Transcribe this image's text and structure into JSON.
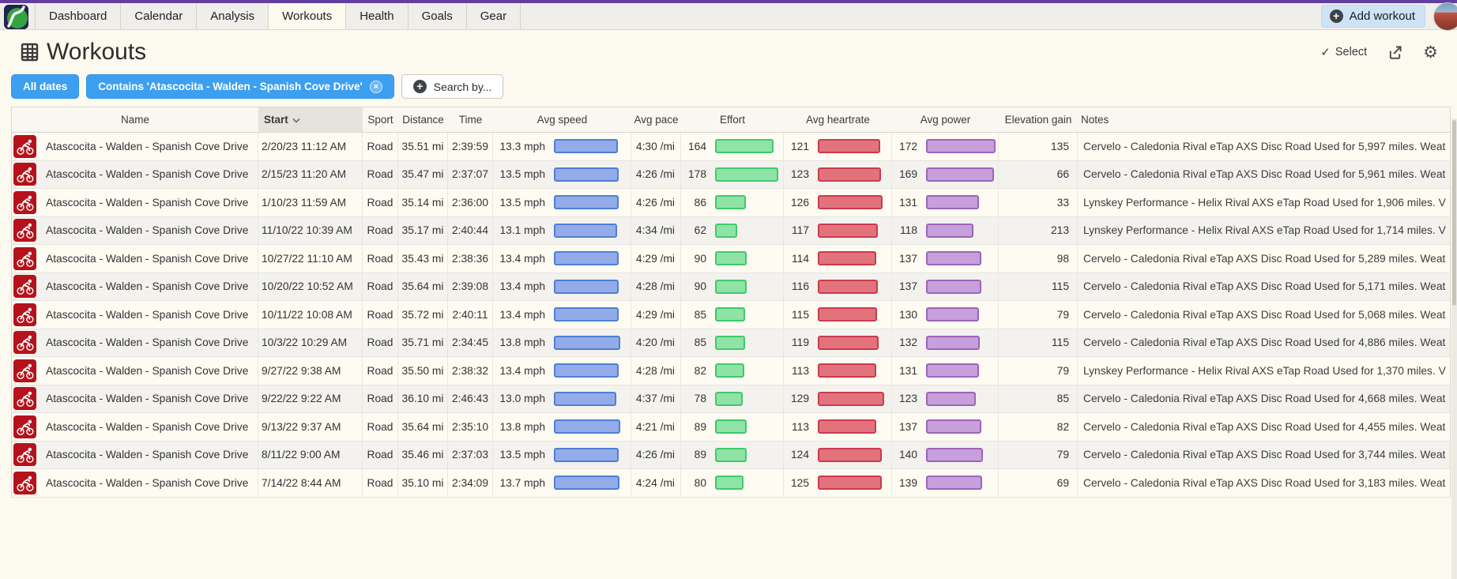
{
  "nav": {
    "tabs": [
      {
        "label": "Dashboard"
      },
      {
        "label": "Calendar"
      },
      {
        "label": "Analysis"
      },
      {
        "label": "Workouts"
      },
      {
        "label": "Health"
      },
      {
        "label": "Goals"
      },
      {
        "label": "Gear"
      }
    ],
    "active_tab": "Workouts",
    "add_workout": "Add workout"
  },
  "page": {
    "title": "Workouts"
  },
  "toolbar": {
    "select": "Select"
  },
  "filters": [
    {
      "label": "All dates",
      "style": "blue",
      "closable": false
    },
    {
      "label": "Contains 'Atascocita - Walden - Spanish Cove Drive'",
      "style": "blue",
      "closable": true
    },
    {
      "label": "Search by...",
      "style": "light",
      "plus": true
    }
  ],
  "table": {
    "headers": [
      "Name",
      "Start",
      "Sport",
      "Distance",
      "Time",
      "Avg speed",
      "Avg pace",
      "Effort",
      "Avg heartrate",
      "Avg power",
      "Elevation gain",
      "Notes"
    ],
    "sorted_column": "Start",
    "sort_direction": "desc",
    "rows": [
      {
        "name": "Atascocita - Walden - Spanish Cove Drive",
        "start": "2/20/23 11:12 AM",
        "sport": "Road",
        "distance": "35.51 mi",
        "time": "2:39:59",
        "speed": "13.3 mph",
        "pace": "4:30 /mi",
        "effort": 164,
        "hr": 121,
        "power": 172,
        "elev": "135",
        "notes": "Cervelo - Caledonia Rival eTap AXS Disc Road Used for 5,997 miles. Weat"
      },
      {
        "name": "Atascocita - Walden - Spanish Cove Drive",
        "start": "2/15/23 11:20 AM",
        "sport": "Road",
        "distance": "35.47 mi",
        "time": "2:37:07",
        "speed": "13.5 mph",
        "pace": "4:26 /mi",
        "effort": 178,
        "hr": 123,
        "power": 169,
        "elev": "66",
        "notes": "Cervelo - Caledonia Rival eTap AXS Disc Road Used for 5,961 miles. Weat"
      },
      {
        "name": "Atascocita - Walden - Spanish Cove Drive",
        "start": "1/10/23 11:59 AM",
        "sport": "Road",
        "distance": "35.14 mi",
        "time": "2:36:00",
        "speed": "13.5 mph",
        "pace": "4:26 /mi",
        "effort": 86,
        "hr": 126,
        "power": 131,
        "elev": "33",
        "notes": "Lynskey Performance - Helix Rival AXS eTap Road Used for 1,906 miles. V"
      },
      {
        "name": "Atascocita - Walden - Spanish Cove Drive",
        "start": "11/10/22 10:39 AM",
        "sport": "Road",
        "distance": "35.17 mi",
        "time": "2:40:44",
        "speed": "13.1 mph",
        "pace": "4:34 /mi",
        "effort": 62,
        "hr": 117,
        "power": 118,
        "elev": "213",
        "notes": "Lynskey Performance - Helix Rival AXS eTap Road Used for 1,714 miles. V"
      },
      {
        "name": "Atascocita - Walden - Spanish Cove Drive",
        "start": "10/27/22 11:10 AM",
        "sport": "Road",
        "distance": "35.43 mi",
        "time": "2:38:36",
        "speed": "13.4 mph",
        "pace": "4:29 /mi",
        "effort": 90,
        "hr": 114,
        "power": 137,
        "elev": "98",
        "notes": "Cervelo - Caledonia Rival eTap AXS Disc Road Used for 5,289 miles. Weat"
      },
      {
        "name": "Atascocita - Walden - Spanish Cove Drive",
        "start": "10/20/22 10:52 AM",
        "sport": "Road",
        "distance": "35.64 mi",
        "time": "2:39:08",
        "speed": "13.4 mph",
        "pace": "4:28 /mi",
        "effort": 90,
        "hr": 116,
        "power": 137,
        "elev": "115",
        "notes": "Cervelo - Caledonia Rival eTap AXS Disc Road Used for 5,171 miles. Weat"
      },
      {
        "name": "Atascocita - Walden - Spanish Cove Drive",
        "start": "10/11/22 10:08 AM",
        "sport": "Road",
        "distance": "35.72 mi",
        "time": "2:40:11",
        "speed": "13.4 mph",
        "pace": "4:29 /mi",
        "effort": 85,
        "hr": 115,
        "power": 130,
        "elev": "79",
        "notes": "Cervelo - Caledonia Rival eTap AXS Disc Road Used for 5,068 miles. Weat"
      },
      {
        "name": "Atascocita - Walden - Spanish Cove Drive",
        "start": "10/3/22 10:29 AM",
        "sport": "Road",
        "distance": "35.71 mi",
        "time": "2:34:45",
        "speed": "13.8 mph",
        "pace": "4:20 /mi",
        "effort": 85,
        "hr": 119,
        "power": 132,
        "elev": "115",
        "notes": "Cervelo - Caledonia Rival eTap AXS Disc Road Used for 4,886 miles. Weat"
      },
      {
        "name": "Atascocita - Walden - Spanish Cove Drive",
        "start": "9/27/22 9:38 AM",
        "sport": "Road",
        "distance": "35.50 mi",
        "time": "2:38:32",
        "speed": "13.4 mph",
        "pace": "4:28 /mi",
        "effort": 82,
        "hr": 113,
        "power": 131,
        "elev": "79",
        "notes": "Lynskey Performance - Helix Rival AXS eTap Road Used for 1,370 miles. V"
      },
      {
        "name": "Atascocita - Walden - Spanish Cove Drive",
        "start": "9/22/22 9:22 AM",
        "sport": "Road",
        "distance": "36.10 mi",
        "time": "2:46:43",
        "speed": "13.0 mph",
        "pace": "4:37 /mi",
        "effort": 78,
        "hr": 129,
        "power": 123,
        "elev": "85",
        "notes": "Cervelo - Caledonia Rival eTap AXS Disc Road Used for 4,668 miles. Weat"
      },
      {
        "name": "Atascocita - Walden - Spanish Cove Drive",
        "start": "9/13/22 9:37 AM",
        "sport": "Road",
        "distance": "35.64 mi",
        "time": "2:35:10",
        "speed": "13.8 mph",
        "pace": "4:21 /mi",
        "effort": 89,
        "hr": 113,
        "power": 137,
        "elev": "82",
        "notes": "Cervelo - Caledonia Rival eTap AXS Disc Road Used for 4,455 miles. Weat"
      },
      {
        "name": "Atascocita - Walden - Spanish Cove Drive",
        "start": "8/11/22 9:00 AM",
        "sport": "Road",
        "distance": "35.46 mi",
        "time": "2:37:03",
        "speed": "13.5 mph",
        "pace": "4:26 /mi",
        "effort": 89,
        "hr": 124,
        "power": 140,
        "elev": "79",
        "notes": "Cervelo - Caledonia Rival eTap AXS Disc Road Used for 3,744 miles. Weat"
      },
      {
        "name": "Atascocita - Walden - Spanish Cove Drive",
        "start": "7/14/22 8:44 AM",
        "sport": "Road",
        "distance": "35.10 mi",
        "time": "2:34:09",
        "speed": "13.7 mph",
        "pace": "4:24 /mi",
        "effort": 80,
        "hr": 125,
        "power": 139,
        "elev": "69",
        "notes": "Cervelo - Caledonia Rival eTap AXS Disc Road Used for 3,183 miles. Weat"
      }
    ]
  },
  "colors": {
    "top_border": "#613f9e",
    "accent_blue": "#3d9ff0",
    "speed_bar_fill": "#93ace9",
    "speed_bar_border": "#4d7fd6",
    "effort_bar_fill": "#8fe3a6",
    "effort_bar_border": "#3fca6b",
    "hr_bar_fill": "#e2737c",
    "hr_bar_border": "#cc3a4c",
    "power_bar_fill": "#c79fdb",
    "power_bar_border": "#9d64bb",
    "sport_icon_bg": "#b5121b"
  }
}
